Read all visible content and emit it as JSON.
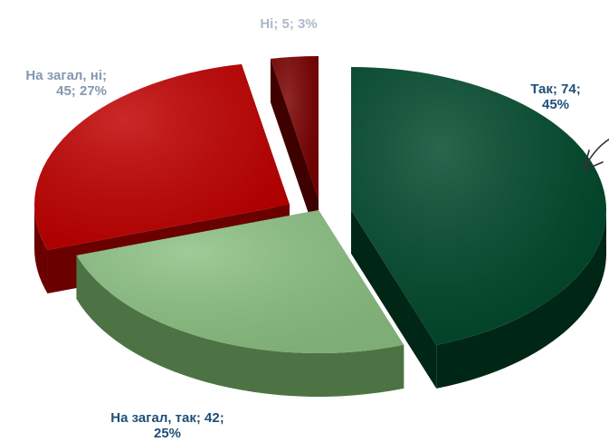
{
  "chart_data": {
    "type": "pie",
    "three_d": true,
    "exploded": true,
    "series": [
      {
        "slices": [
          {
            "label": "Так",
            "value": 74,
            "percent": 45,
            "color": "#00492b",
            "side_color": "#002616",
            "label_color": "#1f4e79"
          },
          {
            "label": "На загал, так",
            "value": 42,
            "percent": 25,
            "color": "#8cc183",
            "side_color": "#4d7344",
            "label_color": "#1f4e79"
          },
          {
            "label": "На загал, ні",
            "value": 45,
            "percent": 27,
            "color": "#c00000",
            "side_color": "#6b0000",
            "label_color": "#8497b0"
          },
          {
            "label": "Ні",
            "value": 5,
            "percent": 3,
            "color": "#7a0000",
            "side_color": "#3f0000",
            "label_color": "#adb9ca"
          }
        ]
      }
    ],
    "labels": {
      "s0_line1": "Так; 74;",
      "s0_line2": "45%",
      "s1_line1": "На загал, так; 42;",
      "s1_line2": "25%",
      "s2_line1": "На загал, ні;",
      "s2_line2": "45; 27%",
      "s3_line1": "Ні; 5; 3%"
    },
    "legend": "none"
  }
}
